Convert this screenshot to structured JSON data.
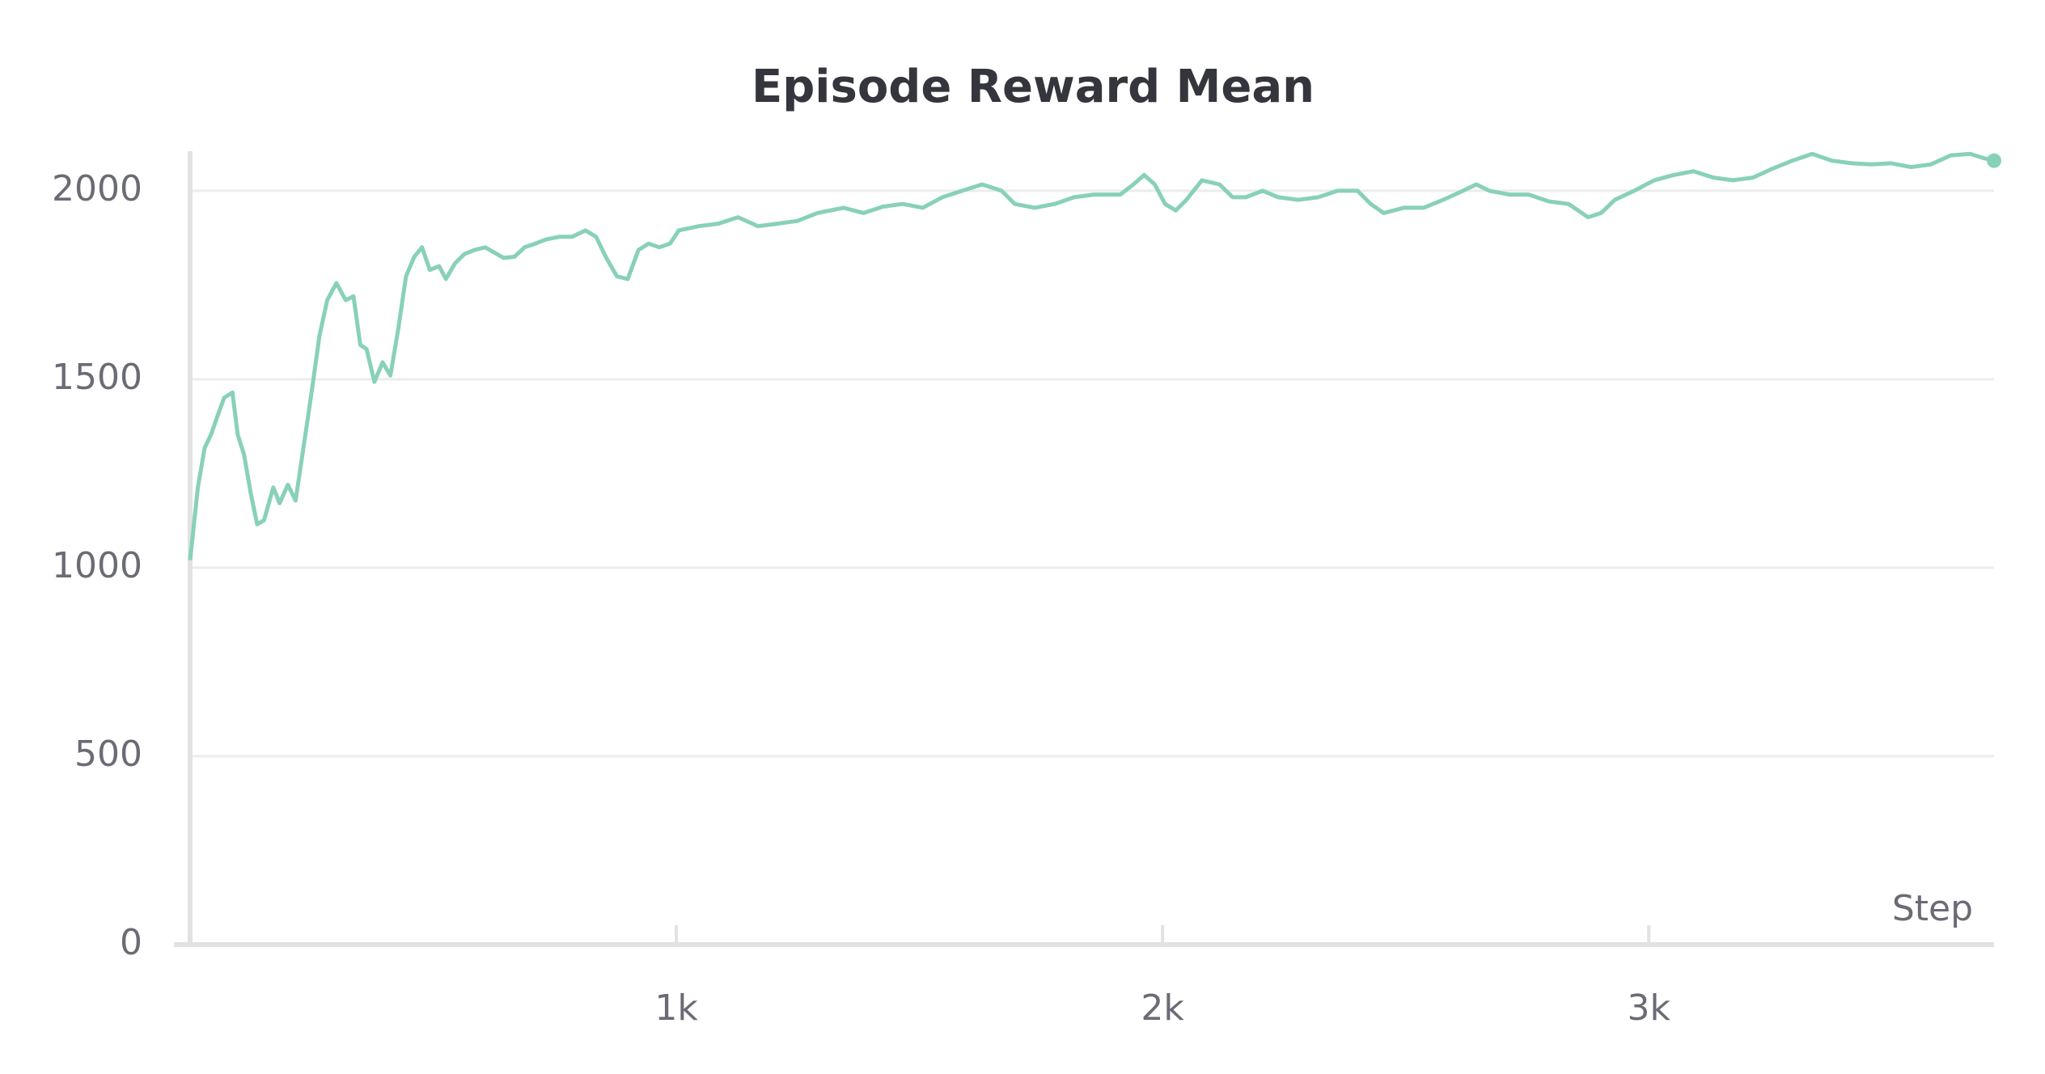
{
  "chart_data": {
    "type": "line",
    "title": "Episode Reward Mean",
    "x_label": "Step",
    "x": [
      0,
      16,
      30,
      43,
      57,
      70,
      87,
      98,
      111,
      125,
      138,
      152,
      171,
      184,
      201,
      217,
      233,
      249,
      266,
      282,
      301,
      320,
      336,
      350,
      363,
      379,
      396,
      412,
      428,
      444,
      461,
      477,
      493,
      512,
      526,
      545,
      564,
      585,
      607,
      626,
      645,
      667,
      688,
      710,
      732,
      759,
      786,
      813,
      835,
      856,
      878,
      900,
      922,
      943,
      965,
      987,
      1005,
      1046,
      1087,
      1127,
      1168,
      1209,
      1249,
      1290,
      1344,
      1385,
      1425,
      1466,
      1507,
      1547,
      1588,
      1629,
      1669,
      1696,
      1737,
      1778,
      1818,
      1859,
      1913,
      1940,
      1962,
      1984,
      2005,
      2027,
      2049,
      2081,
      2117,
      2144,
      2171,
      2206,
      2238,
      2279,
      2320,
      2360,
      2401,
      2428,
      2455,
      2496,
      2537,
      2577,
      2618,
      2645,
      2672,
      2713,
      2753,
      2794,
      2835,
      2875,
      2902,
      2930,
      2970,
      3011,
      3051,
      3092,
      3133,
      3173,
      3214,
      3255,
      3295,
      3336,
      3377,
      3417,
      3458,
      3499,
      3539,
      3580,
      3621,
      3661,
      3688,
      3710
    ],
    "series": [
      {
        "name": "Episode Reward Mean",
        "color": "#88d1b8",
        "values": [
          1020,
          1213,
          1318,
          1353,
          1405,
          1451,
          1465,
          1353,
          1300,
          1196,
          1115,
          1126,
          1213,
          1171,
          1220,
          1178,
          1318,
          1458,
          1615,
          1710,
          1755,
          1710,
          1720,
          1591,
          1580,
          1493,
          1545,
          1510,
          1633,
          1773,
          1825,
          1850,
          1790,
          1800,
          1766,
          1808,
          1832,
          1843,
          1850,
          1836,
          1822,
          1825,
          1850,
          1860,
          1871,
          1878,
          1878,
          1895,
          1878,
          1822,
          1773,
          1766,
          1843,
          1860,
          1850,
          1860,
          1895,
          1906,
          1913,
          1930,
          1906,
          1913,
          1920,
          1941,
          1955,
          1941,
          1958,
          1965,
          1955,
          1983,
          2000,
          2017,
          2000,
          1965,
          1955,
          1965,
          1983,
          1990,
          1990,
          2017,
          2042,
          2017,
          1965,
          1948,
          1976,
          2028,
          2017,
          1983,
          1983,
          2000,
          1983,
          1976,
          1983,
          2000,
          2000,
          1965,
          1941,
          1955,
          1955,
          1976,
          2000,
          2017,
          2000,
          1990,
          1990,
          1972,
          1965,
          1930,
          1941,
          1976,
          2000,
          2028,
          2042,
          2052,
          2035,
          2028,
          2035,
          2059,
          2080,
          2098,
          2080,
          2073,
          2070,
          2073,
          2063,
          2070,
          2094,
          2098,
          2087,
          2080
        ]
      }
    ],
    "xlim": [
      0,
      3710
    ],
    "ylim": [
      0,
      2105
    ],
    "xticks": [
      {
        "value": 1000,
        "label": "1k"
      },
      {
        "value": 2000,
        "label": "2k"
      },
      {
        "value": 3000,
        "label": "3k"
      }
    ],
    "yticks": [
      0,
      500,
      1000,
      1500,
      2000
    ],
    "grid": true
  }
}
